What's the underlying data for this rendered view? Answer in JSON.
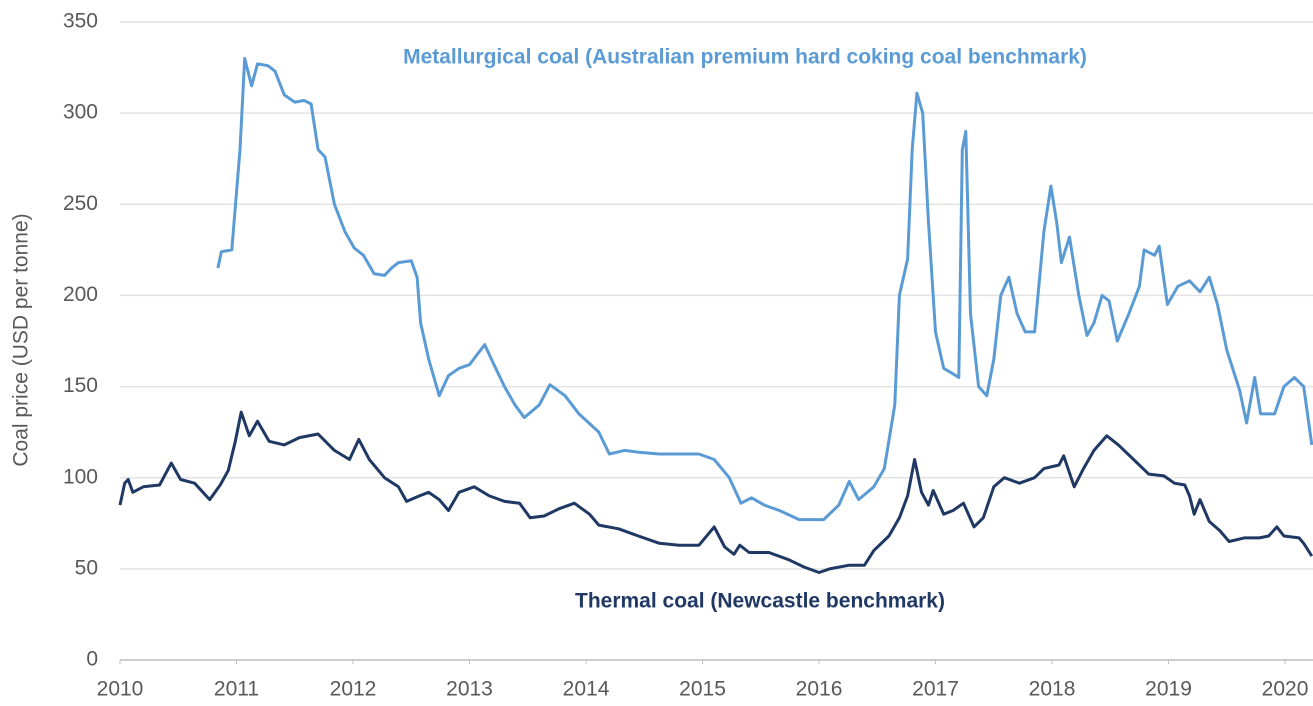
{
  "chart_data": {
    "type": "line",
    "ylabel": "Coal price (USD per tonne)",
    "xlim": [
      2010,
      2020.24
    ],
    "xticks": [
      2010,
      2011,
      2012,
      2013,
      2014,
      2015,
      2016,
      2017,
      2018,
      2019,
      2020
    ],
    "ylim": [
      0,
      350
    ],
    "yticks": [
      0,
      50,
      100,
      150,
      200,
      250,
      300,
      350
    ],
    "grid": true,
    "series": [
      {
        "name": "Metallurgical coal (Australian premium hard coking coal benchmark)",
        "color": "#5b9bd5",
        "x": [
          2010.84,
          2010.87,
          2010.96,
          2011.03,
          2011.07,
          2011.13,
          2011.18,
          2011.27,
          2011.33,
          2011.41,
          2011.5,
          2011.58,
          2011.64,
          2011.7,
          2011.76,
          2011.84,
          2011.93,
          2012.01,
          2012.09,
          2012.18,
          2012.27,
          2012.33,
          2012.39,
          2012.5,
          2012.55,
          2012.58,
          2012.65,
          2012.74,
          2012.82,
          2012.91,
          2013.0,
          2013.13,
          2013.21,
          2013.3,
          2013.39,
          2013.47,
          2013.6,
          2013.69,
          2013.82,
          2013.94,
          2014.11,
          2014.2,
          2014.33,
          2014.45,
          2014.63,
          2014.8,
          2014.97,
          2015.1,
          2015.23,
          2015.33,
          2015.42,
          2015.53,
          2015.66,
          2015.83,
          2016.04,
          2016.17,
          2016.26,
          2016.34,
          2016.47,
          2016.56,
          2016.65,
          2016.69,
          2016.76,
          2016.8,
          2016.84,
          2016.89,
          2016.94,
          2017.0,
          2017.07,
          2017.15,
          2017.2,
          2017.23,
          2017.26,
          2017.3,
          2017.37,
          2017.44,
          2017.5,
          2017.56,
          2017.63,
          2017.7,
          2017.77,
          2017.85,
          2017.93,
          2017.99,
          2018.04,
          2018.08,
          2018.15,
          2018.23,
          2018.3,
          2018.36,
          2018.43,
          2018.49,
          2018.56,
          2018.66,
          2018.75,
          2018.79,
          2018.88,
          2018.92,
          2018.99,
          2019.08,
          2019.18,
          2019.27,
          2019.35,
          2019.42,
          2019.5,
          2019.61,
          2019.67,
          2019.74,
          2019.79,
          2019.91,
          2019.99,
          2020.08,
          2020.16,
          2020.23
        ],
        "values": [
          215,
          224,
          225,
          280,
          330,
          315,
          327,
          326,
          323,
          310,
          306,
          307,
          305,
          280,
          276,
          250,
          235,
          226,
          222,
          212,
          211,
          215,
          218,
          219,
          210,
          185,
          165,
          145,
          156,
          160,
          162,
          173,
          162,
          150,
          140,
          133,
          140,
          151,
          145,
          135,
          125,
          113,
          115,
          114,
          113,
          113,
          113,
          110,
          100,
          86,
          89,
          85,
          82,
          77,
          77,
          85,
          98,
          88,
          95,
          105,
          140,
          200,
          220,
          280,
          311,
          300,
          240,
          180,
          160,
          157,
          155,
          280,
          290,
          190,
          150,
          145,
          165,
          200,
          210,
          190,
          180,
          180,
          235,
          260,
          240,
          218,
          232,
          200,
          178,
          185,
          200,
          197,
          175,
          190,
          205,
          225,
          222,
          227,
          195,
          205,
          208,
          202,
          210,
          195,
          170,
          148,
          130,
          155,
          135,
          135,
          150,
          155,
          150,
          118
        ]
      },
      {
        "name": "Thermal coal (Newcastle benchmark)",
        "color": "#203864",
        "x": [
          2010.0,
          2010.04,
          2010.07,
          2010.11,
          2010.2,
          2010.34,
          2010.44,
          2010.52,
          2010.64,
          2010.77,
          2010.86,
          2010.93,
          2010.99,
          2011.04,
          2011.11,
          2011.18,
          2011.28,
          2011.41,
          2011.54,
          2011.7,
          2011.84,
          2011.97,
          2012.05,
          2012.14,
          2012.27,
          2012.39,
          2012.46,
          2012.57,
          2012.65,
          2012.74,
          2012.82,
          2012.91,
          2013.04,
          2013.17,
          2013.3,
          2013.43,
          2013.52,
          2013.64,
          2013.77,
          2013.9,
          2014.03,
          2014.11,
          2014.28,
          2014.45,
          2014.63,
          2014.8,
          2014.97,
          2015.1,
          2015.19,
          2015.27,
          2015.32,
          2015.4,
          2015.57,
          2015.74,
          2015.87,
          2016.0,
          2016.09,
          2016.26,
          2016.39,
          2016.47,
          2016.6,
          2016.69,
          2016.76,
          2016.82,
          2016.88,
          2016.94,
          2016.98,
          2017.07,
          2017.15,
          2017.24,
          2017.33,
          2017.41,
          2017.5,
          2017.59,
          2017.72,
          2017.85,
          2017.93,
          2018.06,
          2018.1,
          2018.19,
          2018.27,
          2018.36,
          2018.47,
          2018.57,
          2018.7,
          2018.83,
          2018.96,
          2019.05,
          2019.14,
          2019.18,
          2019.22,
          2019.27,
          2019.35,
          2019.44,
          2019.52,
          2019.65,
          2019.78,
          2019.86,
          2019.93,
          2019.99,
          2020.12,
          2020.16,
          2020.23
        ],
        "values": [
          85,
          97,
          99,
          92,
          95,
          96,
          108,
          99,
          97,
          88,
          96,
          104,
          120,
          136,
          123,
          131,
          120,
          118,
          122,
          124,
          115,
          110,
          121,
          110,
          100,
          95,
          87,
          90,
          92,
          88,
          82,
          92,
          95,
          90,
          87,
          86,
          78,
          79,
          83,
          86,
          80,
          74,
          72,
          68,
          64,
          63,
          63,
          73,
          62,
          58,
          63,
          59,
          59,
          55,
          51,
          48,
          50,
          52,
          52,
          60,
          68,
          78,
          90,
          110,
          92,
          85,
          93,
          80,
          82,
          86,
          73,
          78,
          95,
          100,
          97,
          100,
          105,
          107,
          112,
          95,
          105,
          115,
          123,
          118,
          110,
          102,
          101,
          97,
          96,
          90,
          80,
          88,
          76,
          71,
          65,
          67,
          67,
          68,
          73,
          68,
          67,
          64,
          57
        ]
      }
    ]
  }
}
